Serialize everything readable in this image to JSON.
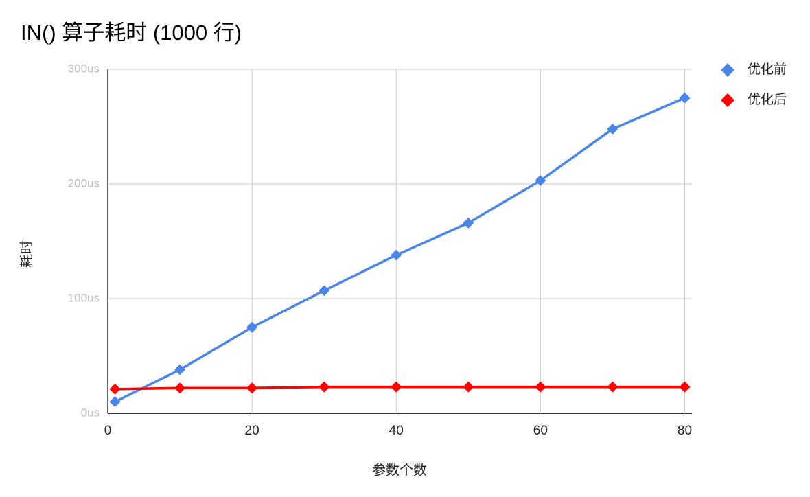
{
  "chart_data": {
    "type": "line",
    "title": "IN() 算子耗时 (1000 行)",
    "x_label": "参数个数",
    "y_label": "耗时",
    "x": [
      1,
      10,
      20,
      30,
      40,
      50,
      60,
      70,
      80
    ],
    "series": [
      {
        "name": "优化前",
        "color": "#4a86e8",
        "values": [
          10,
          38,
          75,
          107,
          138,
          166,
          203,
          248,
          275
        ]
      },
      {
        "name": "优化后",
        "color": "#ff0000",
        "values": [
          21,
          22,
          22,
          23,
          23,
          23,
          23,
          23,
          23
        ]
      }
    ],
    "xlim": [
      0,
      81
    ],
    "xticks": [
      0,
      20,
      40,
      60,
      80
    ],
    "ylim": [
      0,
      300
    ],
    "yticks": [
      {
        "value": 0,
        "label": "0us"
      },
      {
        "value": 100,
        "label": "100us"
      },
      {
        "value": 200,
        "label": "200us"
      },
      {
        "value": 300,
        "label": "300us"
      }
    ],
    "grid": true,
    "legend": "right"
  }
}
